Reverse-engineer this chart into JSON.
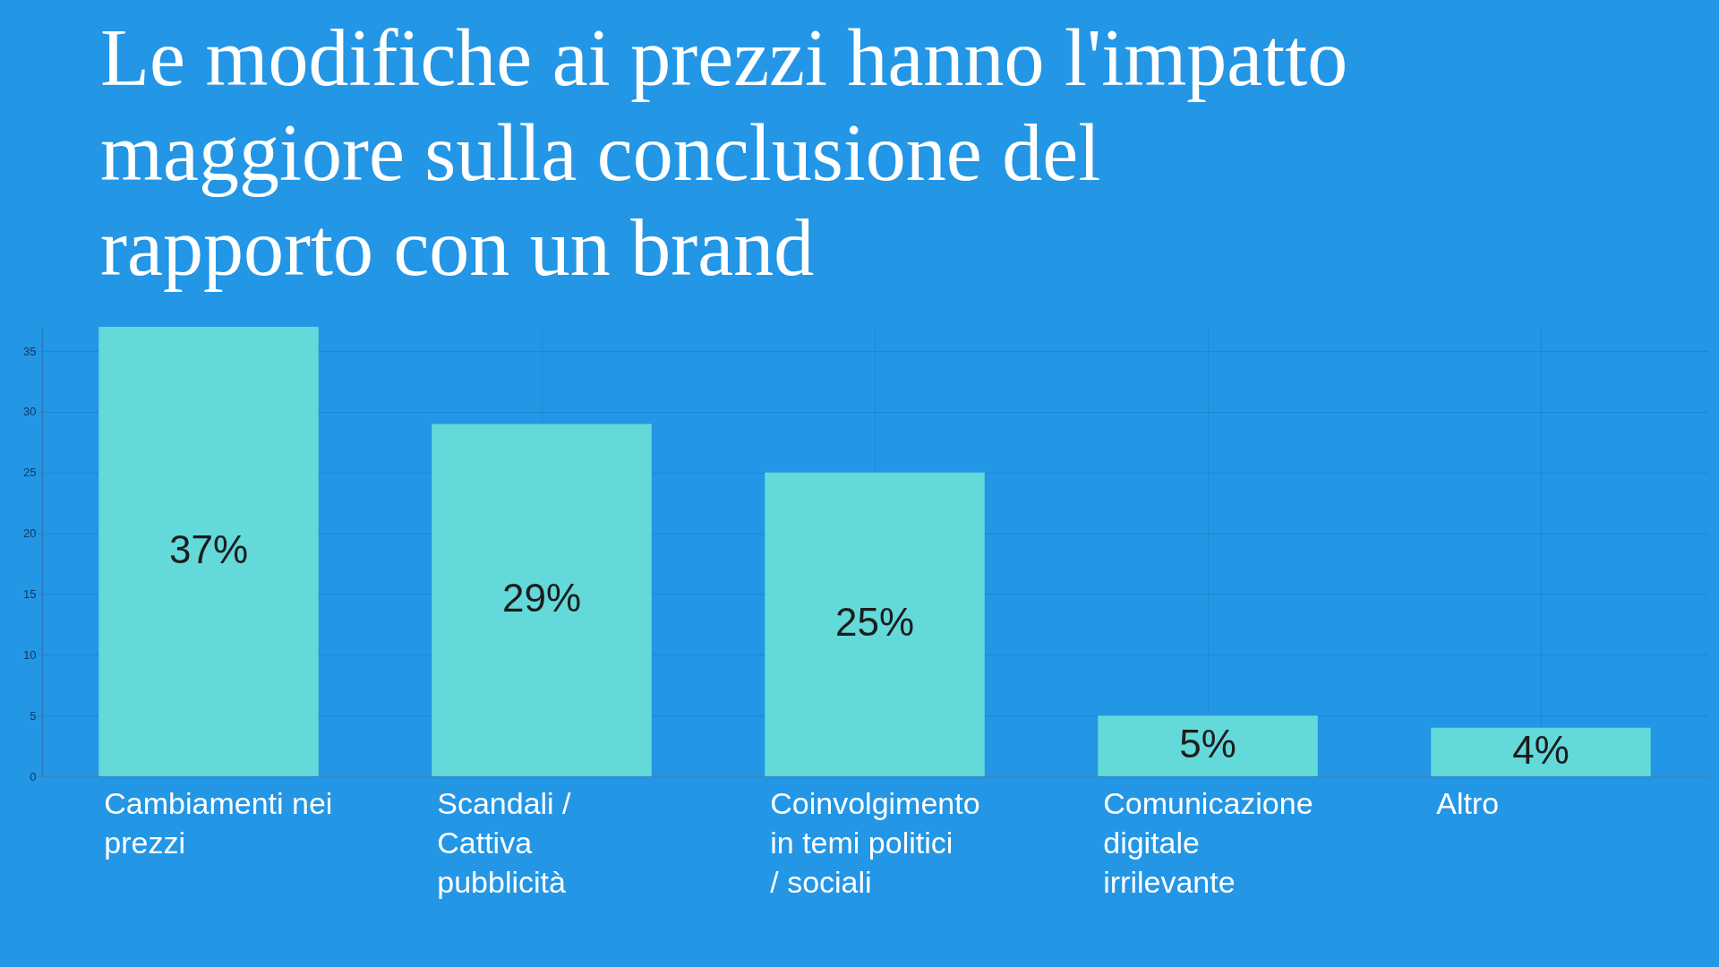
{
  "chart_data": {
    "type": "bar",
    "title": "Le modifiche ai prezzi hanno l'impatto maggiore sulla conclusione del rapporto con un brand",
    "categories": [
      "Cambiamenti nei prezzi",
      "Scandali / Cattiva pubblicità",
      "Coinvolgimento in temi politici / sociali",
      "Comunicazione digitale irrilevante",
      "Altro"
    ],
    "values": [
      37,
      29,
      25,
      5,
      4
    ],
    "value_labels": [
      "37%",
      "29%",
      "25%",
      "5%",
      "4%"
    ],
    "color": "#63d9d9",
    "ylim": [
      0,
      37
    ],
    "yticks": [
      0,
      5,
      10,
      15,
      20,
      25,
      30,
      35
    ],
    "grid": true
  }
}
